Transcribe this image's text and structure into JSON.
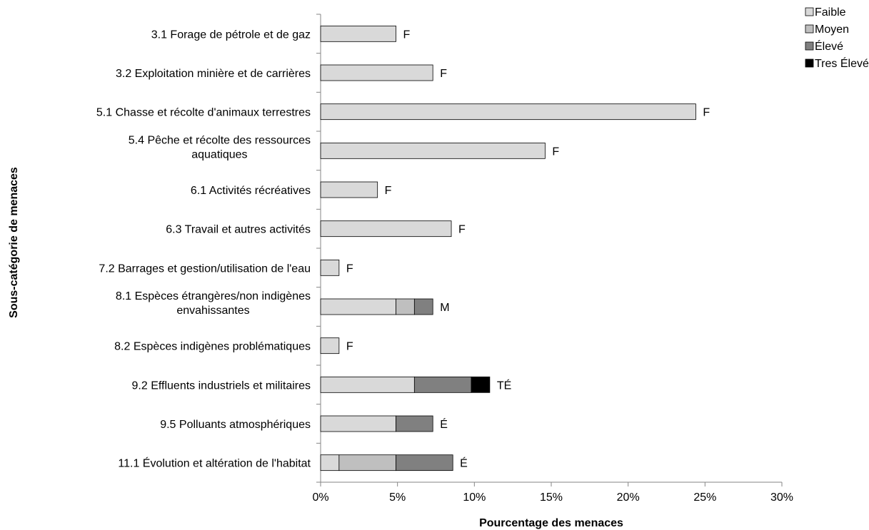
{
  "chart_data": {
    "type": "bar",
    "orientation": "horizontal",
    "stacked": true,
    "xlabel": "Pourcentage des menaces",
    "ylabel": "Sous-catégorie de menaces",
    "xlim": [
      0,
      30
    ],
    "x_ticks": [
      "0%",
      "5%",
      "10%",
      "15%",
      "20%",
      "25%",
      "30%"
    ],
    "grid": false,
    "legend_position": "top-right",
    "categories": [
      [
        "3.1 Forage de pétrole et de gaz"
      ],
      [
        "3.2 Exploitation minière et de carrières"
      ],
      [
        "5.1 Chasse et récolte d'animaux terrestres"
      ],
      [
        "5.4 Pêche et récolte des ressources",
        "aquatiques"
      ],
      [
        "6.1 Activités récréatives"
      ],
      [
        "6.3 Travail et autres activités"
      ],
      [
        "7.2 Barrages et gestion/utilisation de l'eau"
      ],
      [
        "8.1 Espèces étrangères/non indigènes",
        "envahissantes"
      ],
      [
        "8.2 Espèces indigènes problématiques"
      ],
      [
        "9.2 Effluents industriels et militaires"
      ],
      [
        "9.5 Polluants atmosphériques"
      ],
      [
        "11.1 Évolution et altération de l'habitat"
      ]
    ],
    "series": [
      {
        "name": "Faible",
        "color": "#d9d9d9",
        "values": [
          4.9,
          7.3,
          24.4,
          14.6,
          3.7,
          8.5,
          1.2,
          4.9,
          1.2,
          6.1,
          4.9,
          1.2
        ]
      },
      {
        "name": "Moyen",
        "color": "#bfbfbf",
        "values": [
          0,
          0,
          0,
          0,
          0,
          0,
          0,
          1.2,
          0,
          0,
          0,
          3.7
        ]
      },
      {
        "name": "Élevé",
        "color": "#808080",
        "values": [
          0,
          0,
          0,
          0,
          0,
          0,
          0,
          1.2,
          0,
          3.7,
          2.4,
          3.7
        ]
      },
      {
        "name": "Tres Élevé",
        "color": "#000000",
        "values": [
          0,
          0,
          0,
          0,
          0,
          0,
          0,
          0,
          0,
          1.2,
          0,
          0
        ]
      }
    ],
    "data_labels": [
      "F",
      "F",
      "F",
      "F",
      "F",
      "F",
      "F",
      "M",
      "F",
      "TÉ",
      "É",
      "É"
    ]
  }
}
